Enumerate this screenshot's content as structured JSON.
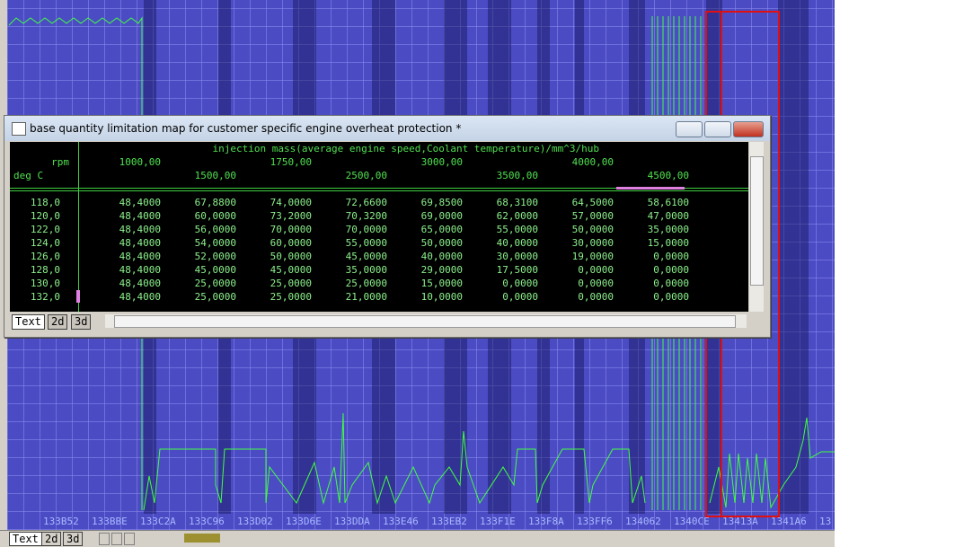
{
  "window": {
    "title": "base quantity limitation map for customer specific engine overheat protection *"
  },
  "table": {
    "header": "injection mass(average engine speed,Coolant temperature)/mm^3/hub",
    "x_label": "rpm",
    "y_label": "deg C",
    "columns": [
      "1000,00",
      "1500,00",
      "1750,00",
      "2500,00",
      "3000,00",
      "3500,00",
      "4000,00",
      "4500,00"
    ],
    "rows": [
      {
        "label": "118,0",
        "values": [
          "48,4000",
          "67,8800",
          "74,0000",
          "72,6600",
          "69,8500",
          "68,3100",
          "64,5000",
          "58,6100"
        ]
      },
      {
        "label": "120,0",
        "values": [
          "48,4000",
          "60,0000",
          "73,2000",
          "70,3200",
          "69,0000",
          "62,0000",
          "57,0000",
          "47,0000"
        ]
      },
      {
        "label": "122,0",
        "values": [
          "48,4000",
          "56,0000",
          "70,0000",
          "70,0000",
          "65,0000",
          "55,0000",
          "50,0000",
          "35,0000"
        ]
      },
      {
        "label": "124,0",
        "values": [
          "48,4000",
          "54,0000",
          "60,0000",
          "55,0000",
          "50,0000",
          "40,0000",
          "30,0000",
          "15,0000"
        ]
      },
      {
        "label": "126,0",
        "values": [
          "48,4000",
          "52,0000",
          "50,0000",
          "45,0000",
          "40,0000",
          "30,0000",
          "19,0000",
          "0,0000"
        ]
      },
      {
        "label": "128,0",
        "values": [
          "48,4000",
          "45,0000",
          "45,0000",
          "35,0000",
          "29,0000",
          "17,5000",
          "0,0000",
          "0,0000"
        ]
      },
      {
        "label": "130,0",
        "values": [
          "48,4000",
          "25,0000",
          "25,0000",
          "25,0000",
          "15,0000",
          "0,0000",
          "0,0000",
          "0,0000"
        ]
      },
      {
        "label": "132,0",
        "values": [
          "48,4000",
          "25,0000",
          "25,0000",
          "21,0000",
          "10,0000",
          "0,0000",
          "0,0000",
          "0,0000"
        ]
      }
    ]
  },
  "window_tabs": [
    "Text",
    "2d",
    "3d"
  ],
  "hex_axis": {
    "labels": [
      "133B52",
      "133BBE",
      "133C2A",
      "133C96",
      "133D02",
      "133D6E",
      "133DDA",
      "133E46",
      "133EB2",
      "133F1E",
      "133F8A",
      "133FF6",
      "134062",
      "1340CE",
      "13413A",
      "1341A6",
      "13"
    ]
  },
  "bottom_tabs": [
    "Text",
    "2d",
    "3d"
  ]
}
